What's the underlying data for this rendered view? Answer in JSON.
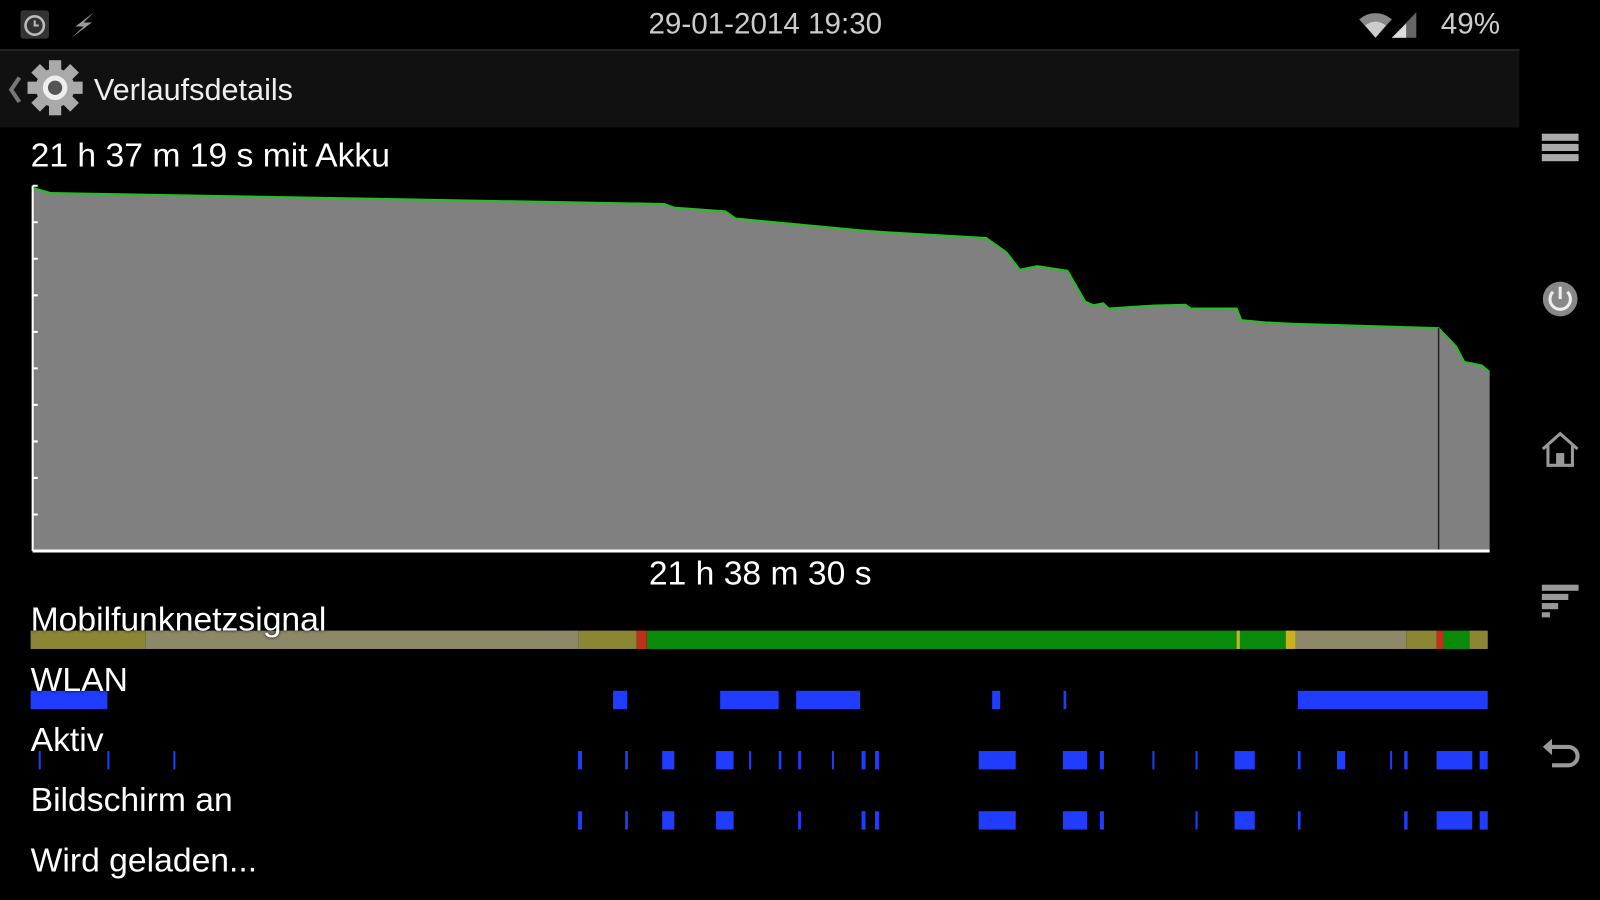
{
  "status_bar": {
    "datetime": "29-01-2014 19:30",
    "battery": "49%",
    "icons": [
      "alarm-icon",
      "charging-bolt-icon",
      "wifi-icon",
      "cell-signal-icon"
    ]
  },
  "action_bar": {
    "title": "Verlaufsdetails",
    "icon": "settings-gear-icon"
  },
  "summary": {
    "on_battery": "21 h 37 m 19 s mit Akku",
    "total_time": "21 h 38 m 30 s"
  },
  "rows": {
    "signal": "Mobilfunknetzsignal",
    "wlan": "WLAN",
    "active": "Aktiv",
    "screen": "Bildschirm an",
    "charging": "Wird geladen..."
  },
  "colors": {
    "graph_fill": "#808080",
    "graph_line": "#22c022",
    "bar_blue": "#1f3cff",
    "signal_green": "#0a8a0a",
    "signal_olive": "#8a8634",
    "signal_khaki": "#8d8868",
    "signal_red": "#c03018",
    "signal_yellow": "#c8b020"
  },
  "nav_bar": {
    "icons": [
      "menu-icon",
      "power-icon",
      "home-icon",
      "recent-apps-icon",
      "back-icon"
    ]
  },
  "chart_data": {
    "type": "area",
    "xlabel": "",
    "ylabel": "",
    "xlim_hours": [
      0,
      21.64
    ],
    "ylim_percent": [
      0,
      100
    ],
    "battery_points": [
      [
        0,
        99.4
      ],
      [
        0.27,
        98
      ],
      [
        9.38,
        95
      ],
      [
        9.53,
        94
      ],
      [
        10.29,
        93
      ],
      [
        10.44,
        91
      ],
      [
        12.41,
        87.6
      ],
      [
        12.72,
        87.2
      ],
      [
        14.16,
        85.7
      ],
      [
        14.46,
        81.8
      ],
      [
        14.66,
        77
      ],
      [
        14.92,
        78
      ],
      [
        15.37,
        76.7
      ],
      [
        15.63,
        68.3
      ],
      [
        15.75,
        67.3
      ],
      [
        15.9,
        67.8
      ],
      [
        15.98,
        66.4
      ],
      [
        16.66,
        67.2
      ],
      [
        17.12,
        67.4
      ],
      [
        17.2,
        66.4
      ],
      [
        17.88,
        66.4
      ],
      [
        17.95,
        63.2
      ],
      [
        18.3,
        62.6
      ],
      [
        18.71,
        62.2
      ],
      [
        20.88,
        61
      ],
      [
        21.14,
        56
      ],
      [
        21.26,
        51.8
      ],
      [
        21.52,
        50.8
      ],
      [
        21.64,
        49
      ]
    ],
    "unplugged_marker_hours": 20.88,
    "signal_segments": [
      [
        0,
        1.71,
        "olive"
      ],
      [
        1.71,
        8.14,
        "khaki"
      ],
      [
        8.14,
        9.0,
        "olive"
      ],
      [
        9.0,
        9.15,
        "red"
      ],
      [
        9.15,
        17.91,
        "green"
      ],
      [
        17.91,
        17.96,
        "yellow"
      ],
      [
        17.96,
        18.64,
        "green"
      ],
      [
        18.64,
        18.79,
        "yellow"
      ],
      [
        18.79,
        20.43,
        "khaki"
      ],
      [
        20.43,
        20.88,
        "olive"
      ],
      [
        20.88,
        20.99,
        "red"
      ],
      [
        20.99,
        21.37,
        "green"
      ],
      [
        21.37,
        21.64,
        "olive"
      ]
    ],
    "wlan_segments": [
      [
        0,
        1.14
      ],
      [
        8.65,
        8.86
      ],
      [
        10.24,
        11.11
      ],
      [
        11.37,
        12.32
      ],
      [
        14.28,
        14.4
      ],
      [
        15.34,
        15.38
      ],
      [
        18.82,
        21.64
      ]
    ],
    "active_segments": [
      [
        0.12,
        0.15
      ],
      [
        1.14,
        1.17
      ],
      [
        2.12,
        2.15
      ],
      [
        8.13,
        8.19
      ],
      [
        8.83,
        8.87
      ],
      [
        9.38,
        9.56
      ],
      [
        10.18,
        10.44
      ],
      [
        10.67,
        10.7
      ],
      [
        11.11,
        11.15
      ],
      [
        11.4,
        11.44
      ],
      [
        11.9,
        11.93
      ],
      [
        12.34,
        12.4
      ],
      [
        12.54,
        12.6
      ],
      [
        14.08,
        14.63
      ],
      [
        15.33,
        15.69
      ],
      [
        15.88,
        15.94
      ],
      [
        16.66,
        16.69
      ],
      [
        17.3,
        17.33
      ],
      [
        17.88,
        18.18
      ],
      [
        18.82,
        18.86
      ],
      [
        19.4,
        19.52
      ],
      [
        20.19,
        20.22
      ],
      [
        20.4,
        20.45
      ],
      [
        20.88,
        21.41
      ],
      [
        21.52,
        21.64
      ]
    ],
    "screen_segments": [
      [
        8.13,
        8.19
      ],
      [
        8.83,
        8.87
      ],
      [
        9.38,
        9.56
      ],
      [
        10.18,
        10.44
      ],
      [
        11.4,
        11.44
      ],
      [
        12.34,
        12.4
      ],
      [
        12.54,
        12.6
      ],
      [
        14.08,
        14.63
      ],
      [
        15.33,
        15.69
      ],
      [
        15.88,
        15.94
      ],
      [
        17.3,
        17.33
      ],
      [
        17.88,
        18.18
      ],
      [
        18.82,
        18.86
      ],
      [
        20.4,
        20.45
      ],
      [
        20.88,
        21.41
      ],
      [
        21.52,
        21.64
      ]
    ]
  }
}
